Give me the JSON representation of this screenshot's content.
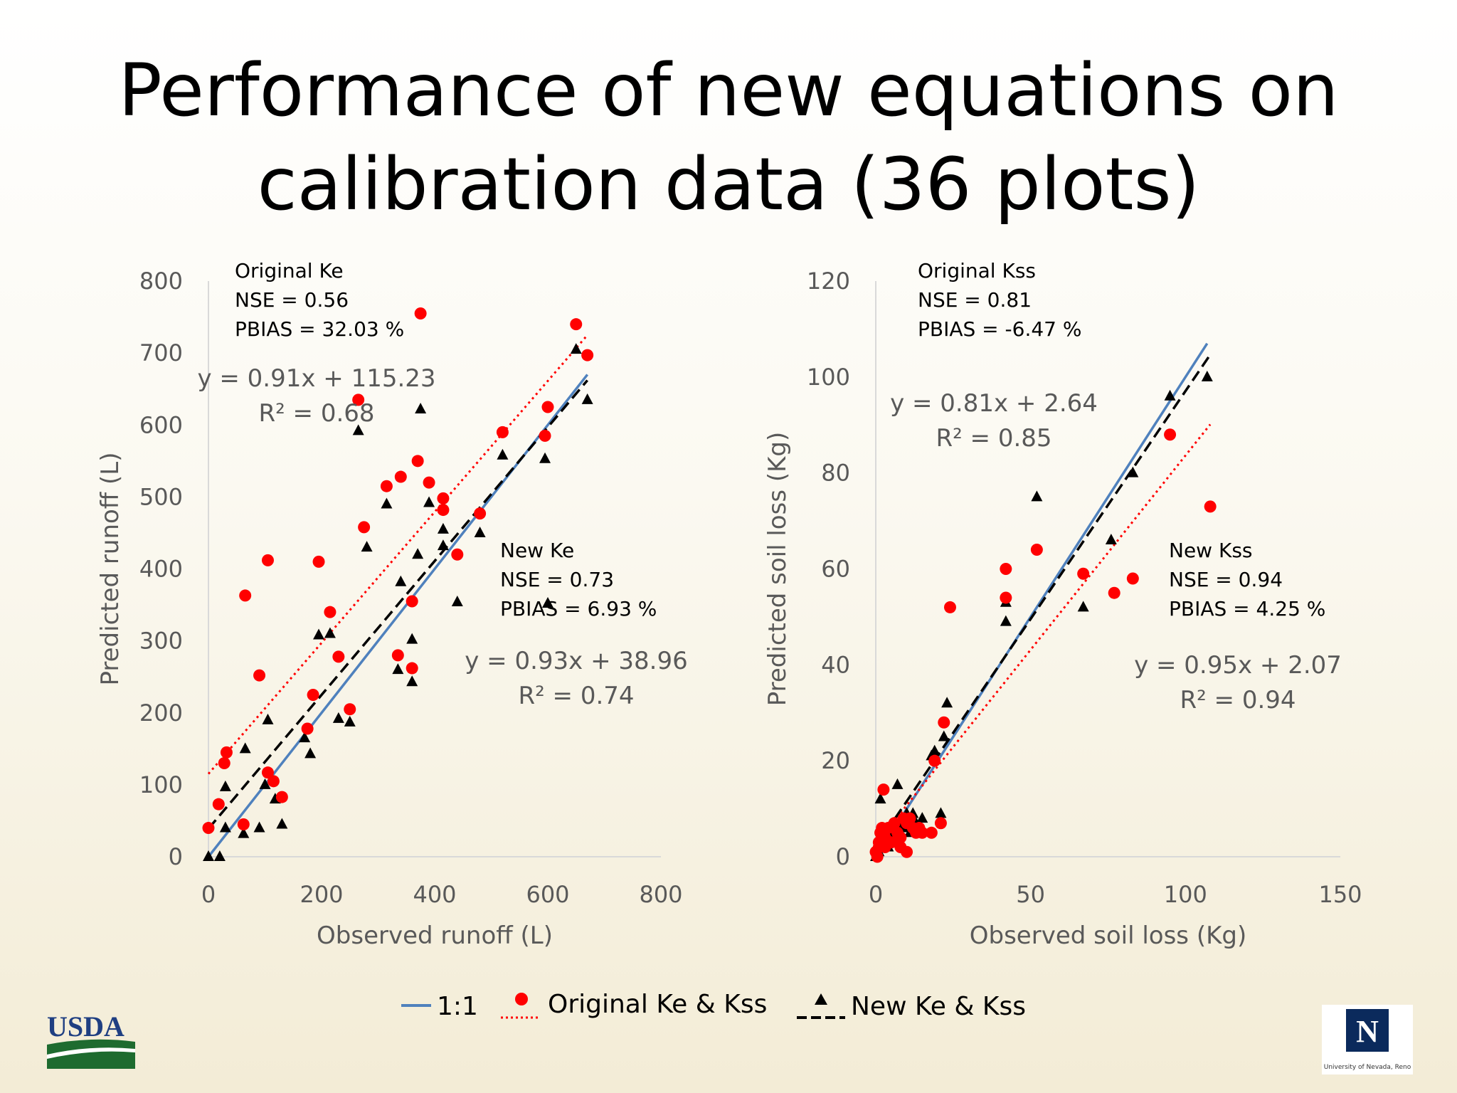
{
  "slide": {
    "title_line1": "Performance of new equations on",
    "title_line2": "calibration data (36 plots)"
  },
  "legend": {
    "one_to_one": "1:1",
    "original": "Original Ke & Kss",
    "new": "New Ke & Kss"
  },
  "colors": {
    "one_to_one": "#4f81bd",
    "original": "#ff0000",
    "new": "#000000",
    "axis_text": "#595959"
  },
  "logos": {
    "left": "USDA",
    "right": "University of Nevada, Reno",
    "right_mark": "N"
  },
  "chart_data": [
    {
      "type": "scatter",
      "xlabel": "Observed runoff (L)",
      "ylabel": "Predicted runoff (L)",
      "xlim": [
        0,
        800
      ],
      "ylim": [
        0,
        800
      ],
      "xticks": [
        0,
        200,
        400,
        600,
        800
      ],
      "yticks": [
        0,
        100,
        200,
        300,
        400,
        500,
        600,
        700,
        800
      ],
      "grid": false,
      "annotations": {
        "original_block": [
          "Original Ke",
          "NSE = 0.56",
          "PBIAS = 32.03 %"
        ],
        "original_eq": [
          "y = 0.91x + 115.23",
          "R² = 0.68"
        ],
        "new_block": [
          "New Ke",
          "NSE = 0.73",
          "PBIAS = 6.93 %"
        ],
        "new_eq": [
          "y = 0.93x + 38.96",
          "R² = 0.74"
        ]
      },
      "series": [
        {
          "name": "1:1",
          "type": "line",
          "points": [
            [
              0,
              0
            ],
            [
              670,
              670
            ]
          ]
        },
        {
          "name": "Original Ke & Kss",
          "type": "scatter",
          "trend": {
            "slope": 0.91,
            "intercept": 115.23
          },
          "points": [
            [
              0,
              40
            ],
            [
              18,
              73
            ],
            [
              28,
              130
            ],
            [
              32,
              145
            ],
            [
              62,
              45
            ],
            [
              65,
              363
            ],
            [
              90,
              252
            ],
            [
              105,
              412
            ],
            [
              105,
              117
            ],
            [
              115,
              105
            ],
            [
              130,
              83
            ],
            [
              175,
              178
            ],
            [
              185,
              225
            ],
            [
              195,
              410
            ],
            [
              215,
              340
            ],
            [
              230,
              278
            ],
            [
              250,
              205
            ],
            [
              265,
              635
            ],
            [
              275,
              458
            ],
            [
              315,
              515
            ],
            [
              340,
              528
            ],
            [
              335,
              280
            ],
            [
              360,
              262
            ],
            [
              360,
              355
            ],
            [
              370,
              550
            ],
            [
              375,
              755
            ],
            [
              390,
              520
            ],
            [
              415,
              498
            ],
            [
              415,
              482
            ],
            [
              440,
              420
            ],
            [
              480,
              477
            ],
            [
              520,
              590
            ],
            [
              595,
              585
            ],
            [
              600,
              625
            ],
            [
              650,
              740
            ],
            [
              670,
              697
            ]
          ]
        },
        {
          "name": "New Ke & Kss",
          "type": "scatter",
          "trend": {
            "slope": 0.93,
            "intercept": 38.96
          },
          "points": [
            [
              0,
              0
            ],
            [
              20,
              0
            ],
            [
              30,
              40
            ],
            [
              30,
              97
            ],
            [
              62,
              32
            ],
            [
              65,
              150
            ],
            [
              90,
              40
            ],
            [
              100,
              100
            ],
            [
              105,
              190
            ],
            [
              118,
              80
            ],
            [
              130,
              45
            ],
            [
              170,
              165
            ],
            [
              180,
              143
            ],
            [
              195,
              308
            ],
            [
              215,
              310
            ],
            [
              230,
              192
            ],
            [
              250,
              187
            ],
            [
              265,
              592
            ],
            [
              280,
              430
            ],
            [
              315,
              490
            ],
            [
              340,
              382
            ],
            [
              335,
              260
            ],
            [
              360,
              243
            ],
            [
              360,
              302
            ],
            [
              370,
              420
            ],
            [
              375,
              622
            ],
            [
              390,
              492
            ],
            [
              415,
              432
            ],
            [
              415,
              455
            ],
            [
              440,
              354
            ],
            [
              480,
              450
            ],
            [
              520,
              558
            ],
            [
              595,
              553
            ],
            [
              600,
              352
            ],
            [
              650,
              705
            ],
            [
              670,
              635
            ]
          ]
        }
      ]
    },
    {
      "type": "scatter",
      "xlabel": "Observed soil loss (Kg)",
      "ylabel": "Predicted soil loss (Kg)",
      "xlim": [
        0,
        150
      ],
      "ylim": [
        0,
        120
      ],
      "xticks": [
        0,
        50,
        100,
        150
      ],
      "yticks": [
        0,
        20,
        40,
        60,
        80,
        100,
        120
      ],
      "grid": false,
      "annotations": {
        "original_block": [
          "Original Kss",
          "NSE = 0.81",
          "PBIAS = -6.47 %"
        ],
        "original_eq": [
          "y = 0.81x + 2.64",
          "R² = 0.85"
        ],
        "new_block": [
          "New Kss",
          "NSE = 0.94",
          "PBIAS = 4.25 %"
        ],
        "new_eq": [
          "y = 0.95x + 2.07",
          "R² = 0.94"
        ]
      },
      "series": [
        {
          "name": "1:1",
          "type": "line",
          "points": [
            [
              0,
              0
            ],
            [
              107,
              107
            ]
          ]
        },
        {
          "name": "Original Ke & Kss",
          "type": "scatter",
          "trend": {
            "slope": 0.81,
            "intercept": 2.64
          },
          "points": [
            [
              0,
              1
            ],
            [
              1,
              2
            ],
            [
              1,
              3
            ],
            [
              1.5,
              5
            ],
            [
              2,
              6
            ],
            [
              2.5,
              14
            ],
            [
              3,
              2
            ],
            [
              3,
              4
            ],
            [
              4,
              6
            ],
            [
              5,
              3
            ],
            [
              6,
              7
            ],
            [
              7,
              5
            ],
            [
              8,
              2
            ],
            [
              8,
              4
            ],
            [
              9,
              8
            ],
            [
              10,
              1
            ],
            [
              10,
              7
            ],
            [
              11,
              8
            ],
            [
              12,
              6
            ],
            [
              13,
              5
            ],
            [
              14,
              6
            ],
            [
              15,
              5
            ],
            [
              18,
              5
            ],
            [
              19,
              20
            ],
            [
              21,
              7
            ],
            [
              22,
              28
            ],
            [
              24,
              52
            ],
            [
              42,
              60
            ],
            [
              42,
              54
            ],
            [
              52,
              64
            ],
            [
              67,
              59
            ],
            [
              77,
              55
            ],
            [
              83,
              58
            ],
            [
              95,
              88
            ],
            [
              108,
              73
            ],
            [
              0.5,
              0
            ]
          ]
        },
        {
          "name": "New Ke & Kss",
          "type": "scatter",
          "trend": {
            "slope": 0.95,
            "intercept": 2.07
          },
          "points": [
            [
              0,
              0
            ],
            [
              1,
              1
            ],
            [
              1,
              3
            ],
            [
              1.5,
              12
            ],
            [
              2,
              4
            ],
            [
              3,
              3
            ],
            [
              4,
              6
            ],
            [
              5,
              4
            ],
            [
              6,
              7
            ],
            [
              7,
              15
            ],
            [
              8,
              3
            ],
            [
              9,
              6
            ],
            [
              10,
              9
            ],
            [
              11,
              6
            ],
            [
              12,
              9
            ],
            [
              13,
              7
            ],
            [
              15,
              8
            ],
            [
              18,
              21
            ],
            [
              19,
              22
            ],
            [
              21,
              9
            ],
            [
              22,
              25
            ],
            [
              23,
              32
            ],
            [
              42,
              53
            ],
            [
              42,
              49
            ],
            [
              52,
              75
            ],
            [
              67,
              52
            ],
            [
              76,
              66
            ],
            [
              83,
              80
            ],
            [
              95,
              96
            ],
            [
              107,
              100
            ],
            [
              0.5,
              1
            ],
            [
              2,
              2
            ],
            [
              4,
              2
            ],
            [
              6,
              4
            ],
            [
              9,
              7
            ],
            [
              11,
              5
            ]
          ]
        }
      ]
    }
  ]
}
